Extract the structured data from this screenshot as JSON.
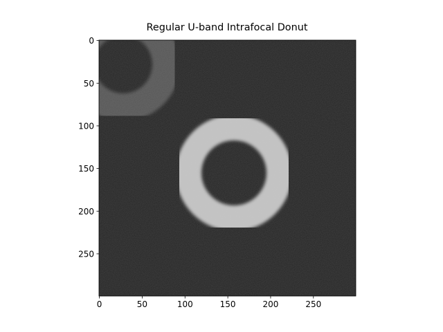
{
  "chart_data": {
    "type": "image",
    "title": "Regular U-band Intrafocal Donut",
    "xlim": [
      -0.5,
      299.5
    ],
    "ylim": [
      299.5,
      -0.5
    ],
    "xticks": [
      0,
      50,
      100,
      150,
      200,
      250
    ],
    "yticks": [
      0,
      50,
      100,
      150,
      200,
      250
    ],
    "cmap": "gray"
  }
}
